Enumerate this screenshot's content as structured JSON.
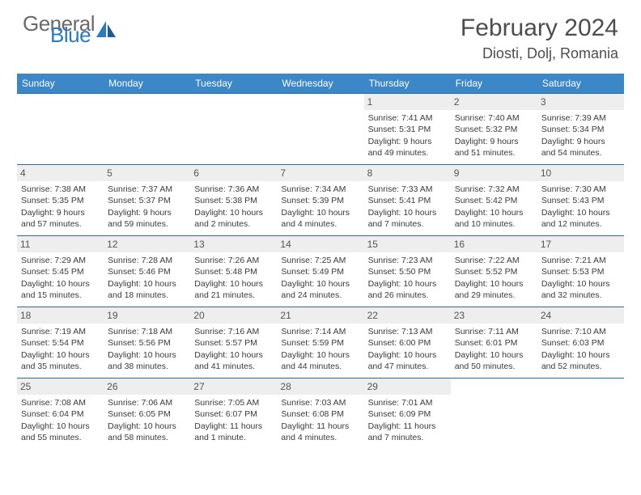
{
  "logo": {
    "general": "General",
    "blue": "Blue"
  },
  "title": "February 2024",
  "location": "Diosti, Dolj, Romania",
  "colors": {
    "header_bg": "#3c87c7",
    "row_border": "#2a6aa5",
    "daynum_bg": "#eeeeee",
    "text": "#3a3a3a",
    "title_text": "#4d4d4d"
  },
  "day_headers": [
    "Sunday",
    "Monday",
    "Tuesday",
    "Wednesday",
    "Thursday",
    "Friday",
    "Saturday"
  ],
  "weeks": [
    [
      null,
      null,
      null,
      null,
      {
        "n": "1",
        "sunrise": "Sunrise: 7:41 AM",
        "sunset": "Sunset: 5:31 PM",
        "daylight1": "Daylight: 9 hours",
        "daylight2": "and 49 minutes."
      },
      {
        "n": "2",
        "sunrise": "Sunrise: 7:40 AM",
        "sunset": "Sunset: 5:32 PM",
        "daylight1": "Daylight: 9 hours",
        "daylight2": "and 51 minutes."
      },
      {
        "n": "3",
        "sunrise": "Sunrise: 7:39 AM",
        "sunset": "Sunset: 5:34 PM",
        "daylight1": "Daylight: 9 hours",
        "daylight2": "and 54 minutes."
      }
    ],
    [
      {
        "n": "4",
        "sunrise": "Sunrise: 7:38 AM",
        "sunset": "Sunset: 5:35 PM",
        "daylight1": "Daylight: 9 hours",
        "daylight2": "and 57 minutes."
      },
      {
        "n": "5",
        "sunrise": "Sunrise: 7:37 AM",
        "sunset": "Sunset: 5:37 PM",
        "daylight1": "Daylight: 9 hours",
        "daylight2": "and 59 minutes."
      },
      {
        "n": "6",
        "sunrise": "Sunrise: 7:36 AM",
        "sunset": "Sunset: 5:38 PM",
        "daylight1": "Daylight: 10 hours",
        "daylight2": "and 2 minutes."
      },
      {
        "n": "7",
        "sunrise": "Sunrise: 7:34 AM",
        "sunset": "Sunset: 5:39 PM",
        "daylight1": "Daylight: 10 hours",
        "daylight2": "and 4 minutes."
      },
      {
        "n": "8",
        "sunrise": "Sunrise: 7:33 AM",
        "sunset": "Sunset: 5:41 PM",
        "daylight1": "Daylight: 10 hours",
        "daylight2": "and 7 minutes."
      },
      {
        "n": "9",
        "sunrise": "Sunrise: 7:32 AM",
        "sunset": "Sunset: 5:42 PM",
        "daylight1": "Daylight: 10 hours",
        "daylight2": "and 10 minutes."
      },
      {
        "n": "10",
        "sunrise": "Sunrise: 7:30 AM",
        "sunset": "Sunset: 5:43 PM",
        "daylight1": "Daylight: 10 hours",
        "daylight2": "and 12 minutes."
      }
    ],
    [
      {
        "n": "11",
        "sunrise": "Sunrise: 7:29 AM",
        "sunset": "Sunset: 5:45 PM",
        "daylight1": "Daylight: 10 hours",
        "daylight2": "and 15 minutes."
      },
      {
        "n": "12",
        "sunrise": "Sunrise: 7:28 AM",
        "sunset": "Sunset: 5:46 PM",
        "daylight1": "Daylight: 10 hours",
        "daylight2": "and 18 minutes."
      },
      {
        "n": "13",
        "sunrise": "Sunrise: 7:26 AM",
        "sunset": "Sunset: 5:48 PM",
        "daylight1": "Daylight: 10 hours",
        "daylight2": "and 21 minutes."
      },
      {
        "n": "14",
        "sunrise": "Sunrise: 7:25 AM",
        "sunset": "Sunset: 5:49 PM",
        "daylight1": "Daylight: 10 hours",
        "daylight2": "and 24 minutes."
      },
      {
        "n": "15",
        "sunrise": "Sunrise: 7:23 AM",
        "sunset": "Sunset: 5:50 PM",
        "daylight1": "Daylight: 10 hours",
        "daylight2": "and 26 minutes."
      },
      {
        "n": "16",
        "sunrise": "Sunrise: 7:22 AM",
        "sunset": "Sunset: 5:52 PM",
        "daylight1": "Daylight: 10 hours",
        "daylight2": "and 29 minutes."
      },
      {
        "n": "17",
        "sunrise": "Sunrise: 7:21 AM",
        "sunset": "Sunset: 5:53 PM",
        "daylight1": "Daylight: 10 hours",
        "daylight2": "and 32 minutes."
      }
    ],
    [
      {
        "n": "18",
        "sunrise": "Sunrise: 7:19 AM",
        "sunset": "Sunset: 5:54 PM",
        "daylight1": "Daylight: 10 hours",
        "daylight2": "and 35 minutes."
      },
      {
        "n": "19",
        "sunrise": "Sunrise: 7:18 AM",
        "sunset": "Sunset: 5:56 PM",
        "daylight1": "Daylight: 10 hours",
        "daylight2": "and 38 minutes."
      },
      {
        "n": "20",
        "sunrise": "Sunrise: 7:16 AM",
        "sunset": "Sunset: 5:57 PM",
        "daylight1": "Daylight: 10 hours",
        "daylight2": "and 41 minutes."
      },
      {
        "n": "21",
        "sunrise": "Sunrise: 7:14 AM",
        "sunset": "Sunset: 5:59 PM",
        "daylight1": "Daylight: 10 hours",
        "daylight2": "and 44 minutes."
      },
      {
        "n": "22",
        "sunrise": "Sunrise: 7:13 AM",
        "sunset": "Sunset: 6:00 PM",
        "daylight1": "Daylight: 10 hours",
        "daylight2": "and 47 minutes."
      },
      {
        "n": "23",
        "sunrise": "Sunrise: 7:11 AM",
        "sunset": "Sunset: 6:01 PM",
        "daylight1": "Daylight: 10 hours",
        "daylight2": "and 50 minutes."
      },
      {
        "n": "24",
        "sunrise": "Sunrise: 7:10 AM",
        "sunset": "Sunset: 6:03 PM",
        "daylight1": "Daylight: 10 hours",
        "daylight2": "and 52 minutes."
      }
    ],
    [
      {
        "n": "25",
        "sunrise": "Sunrise: 7:08 AM",
        "sunset": "Sunset: 6:04 PM",
        "daylight1": "Daylight: 10 hours",
        "daylight2": "and 55 minutes."
      },
      {
        "n": "26",
        "sunrise": "Sunrise: 7:06 AM",
        "sunset": "Sunset: 6:05 PM",
        "daylight1": "Daylight: 10 hours",
        "daylight2": "and 58 minutes."
      },
      {
        "n": "27",
        "sunrise": "Sunrise: 7:05 AM",
        "sunset": "Sunset: 6:07 PM",
        "daylight1": "Daylight: 11 hours",
        "daylight2": "and 1 minute."
      },
      {
        "n": "28",
        "sunrise": "Sunrise: 7:03 AM",
        "sunset": "Sunset: 6:08 PM",
        "daylight1": "Daylight: 11 hours",
        "daylight2": "and 4 minutes."
      },
      {
        "n": "29",
        "sunrise": "Sunrise: 7:01 AM",
        "sunset": "Sunset: 6:09 PM",
        "daylight1": "Daylight: 11 hours",
        "daylight2": "and 7 minutes."
      },
      null,
      null
    ]
  ]
}
